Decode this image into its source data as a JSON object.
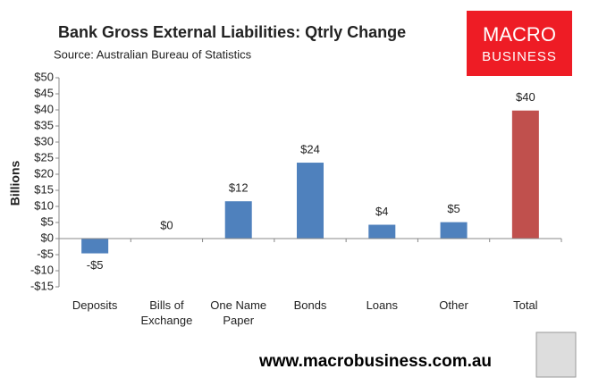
{
  "chart_data": {
    "type": "bar",
    "title": "Bank Gross External Liabilities: Qtrly Change",
    "subtitle": "Source: Australian Bureau of Statistics",
    "ylabel": "Billions",
    "categories": [
      "Deposits",
      "Bills of Exchange",
      "One Name Paper",
      "Bonds",
      "Loans",
      "Other",
      "Total"
    ],
    "values": [
      -4.6,
      0,
      11.6,
      23.6,
      4.3,
      5.1,
      39.8
    ],
    "value_labels": [
      "-$5",
      "$0",
      "$12",
      "$24",
      "$4",
      "$5",
      "$40"
    ],
    "colors": [
      "#4f81bd",
      "#4f81bd",
      "#4f81bd",
      "#4f81bd",
      "#4f81bd",
      "#4f81bd",
      "#c0504d"
    ],
    "ylim": [
      -15,
      50
    ],
    "yticks": [
      {
        "value": -15,
        "label": "-$15"
      },
      {
        "value": -10,
        "label": "-$10"
      },
      {
        "value": -5,
        "label": "-$5"
      },
      {
        "value": 0,
        "label": "$0"
      },
      {
        "value": 5,
        "label": "$5"
      },
      {
        "value": 10,
        "label": "$10"
      },
      {
        "value": 15,
        "label": "$15"
      },
      {
        "value": 20,
        "label": "$20"
      },
      {
        "value": 25,
        "label": "$25"
      },
      {
        "value": 30,
        "label": "$30"
      },
      {
        "value": 35,
        "label": "$35"
      },
      {
        "value": 40,
        "label": "$40"
      },
      {
        "value": 45,
        "label": "$45"
      },
      {
        "value": 50,
        "label": "$50"
      }
    ],
    "grid": false
  },
  "logo": [
    "MACRO",
    "BUSINESS"
  ],
  "footer": "www.macrobusiness.com.au"
}
